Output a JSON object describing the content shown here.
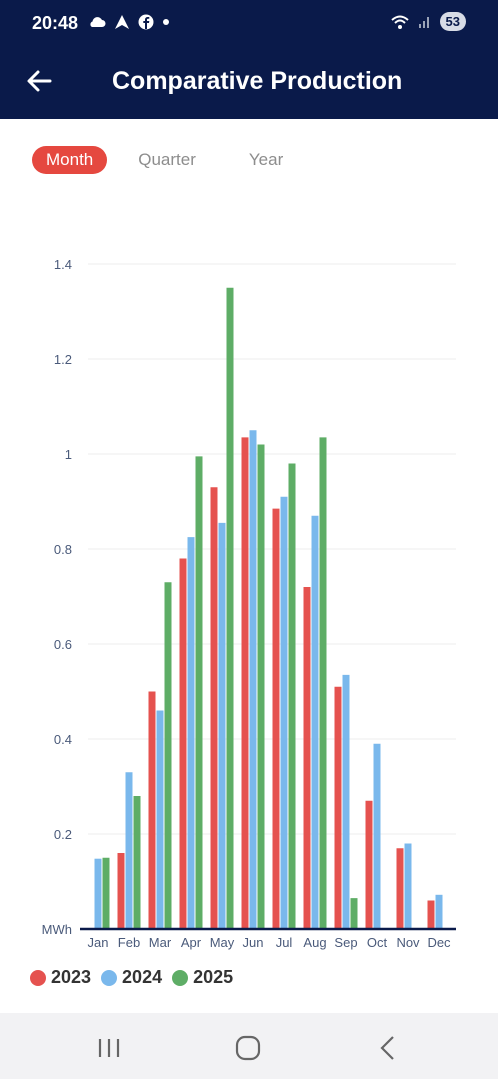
{
  "status": {
    "time": "20:48",
    "battery": "53",
    "icons_left": [
      "cloud-icon",
      "arrow-app-icon",
      "facebook-icon",
      "dot-icon"
    ],
    "icons_right": [
      "wifi-icon",
      "signal-icon"
    ]
  },
  "header": {
    "title": "Comparative Production",
    "back_icon": "arrow-left-icon"
  },
  "tabs": [
    {
      "label": "Month",
      "active": true
    },
    {
      "label": "Quarter",
      "active": false
    },
    {
      "label": "Year",
      "active": false
    }
  ],
  "chart_data": {
    "type": "bar",
    "unit_label": "MWh",
    "categories": [
      "Jan",
      "Feb",
      "Mar",
      "Apr",
      "May",
      "Jun",
      "Jul",
      "Aug",
      "Sep",
      "Oct",
      "Nov",
      "Dec"
    ],
    "ylim": [
      0,
      1.4
    ],
    "yticks": [
      "0.2",
      "0.4",
      "0.6",
      "0.8",
      "1",
      "1.2",
      "1.4"
    ],
    "grid": true,
    "legend_position": "bottom-left",
    "series": [
      {
        "name": "2023",
        "color": "#e5524f",
        "values": [
          null,
          0.16,
          0.5,
          0.78,
          0.93,
          1.035,
          0.885,
          0.72,
          0.51,
          0.27,
          0.17,
          0.06
        ]
      },
      {
        "name": "2024",
        "color": "#7ab8ec",
        "values": [
          0.148,
          0.33,
          0.46,
          0.825,
          0.855,
          1.05,
          0.91,
          0.87,
          0.535,
          0.39,
          0.18,
          0.072
        ]
      },
      {
        "name": "2025",
        "color": "#5ead66",
        "values": [
          0.15,
          0.28,
          0.73,
          0.995,
          1.35,
          1.02,
          0.98,
          1.035,
          0.065,
          null,
          null,
          null
        ]
      }
    ]
  },
  "nav": {
    "recent_icon": "recent-apps-icon",
    "home_icon": "home-icon",
    "back_icon": "back-chevron-icon"
  }
}
